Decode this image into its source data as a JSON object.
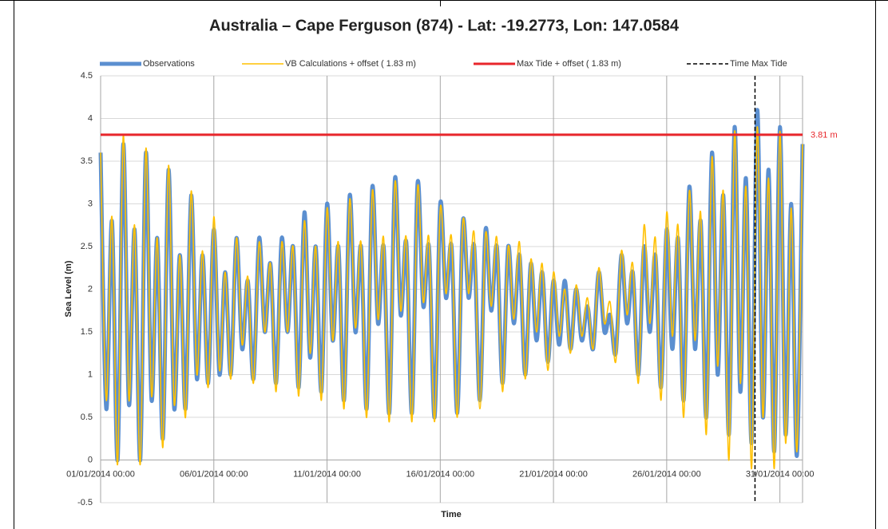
{
  "chart_data": {
    "type": "line",
    "title": "Australia – Cape Ferguson (874) - Lat: -19.2773, Lon: 147.0584",
    "x_label": "Time",
    "y_label": "Sea Level (m)",
    "xlim": [
      0,
      31
    ],
    "ylim": [
      -0.5,
      4.5
    ],
    "xticks": [
      {
        "value": 0,
        "label": "01/01/2014 00:00"
      },
      {
        "value": 5,
        "label": "06/01/2014 00:00"
      },
      {
        "value": 10,
        "label": "11/01/2014 00:00"
      },
      {
        "value": 15,
        "label": "16/01/2014 00:00"
      },
      {
        "value": 20,
        "label": "21/01/2014 00:00"
      },
      {
        "value": 25,
        "label": "26/01/2014 00:00"
      },
      {
        "value": 30,
        "label": "31/01/2014 00:00"
      }
    ],
    "yticks": [
      -0.5,
      0,
      0.5,
      1,
      1.5,
      2,
      2.5,
      3,
      3.5,
      4,
      4.5
    ],
    "grid": true,
    "legend": "top",
    "x": [
      0,
      0.25,
      0.5,
      0.75,
      1,
      1.25,
      1.5,
      1.75,
      2,
      2.25,
      2.5,
      2.75,
      3,
      3.25,
      3.5,
      3.75,
      4,
      4.25,
      4.5,
      4.75,
      5,
      5.25,
      5.5,
      5.75,
      6,
      6.25,
      6.5,
      6.75,
      7,
      7.25,
      7.5,
      7.75,
      8,
      8.25,
      8.5,
      8.75,
      9,
      9.25,
      9.5,
      9.75,
      10,
      10.25,
      10.5,
      10.75,
      11,
      11.25,
      11.5,
      11.75,
      12,
      12.25,
      12.5,
      12.75,
      13,
      13.25,
      13.5,
      13.75,
      14,
      14.25,
      14.5,
      14.75,
      15,
      15.25,
      15.5,
      15.75,
      16,
      16.25,
      16.5,
      16.75,
      17,
      17.25,
      17.5,
      17.75,
      18,
      18.25,
      18.5,
      18.75,
      19,
      19.25,
      19.5,
      19.75,
      20,
      20.25,
      20.5,
      20.75,
      21,
      21.25,
      21.5,
      21.75,
      22,
      22.25,
      22.5,
      22.75,
      23,
      23.25,
      23.5,
      23.75,
      24,
      24.25,
      24.5,
      24.75,
      25,
      25.25,
      25.5,
      25.75,
      26,
      26.25,
      26.5,
      26.75,
      27,
      27.25,
      27.5,
      27.75,
      28,
      28.25,
      28.5,
      28.75,
      29,
      29.25,
      29.5,
      29.75,
      30,
      30.25,
      30.5,
      30.75,
      31
    ],
    "series": [
      {
        "name": "Observations",
        "color": "#5b8fd0",
        "width": 5,
        "values": [
          3.6,
          0.6,
          2.8,
          0.0,
          3.7,
          0.65,
          2.7,
          0.0,
          3.6,
          0.7,
          2.6,
          0.25,
          3.4,
          0.6,
          2.4,
          0.6,
          3.1,
          0.95,
          2.4,
          0.9,
          2.7,
          1.0,
          2.2,
          1.0,
          2.6,
          1.3,
          2.1,
          0.95,
          2.6,
          1.5,
          2.3,
          0.9,
          2.6,
          1.5,
          2.5,
          0.85,
          2.9,
          1.2,
          2.5,
          0.8,
          3.0,
          1.4,
          2.5,
          0.7,
          3.1,
          1.5,
          2.5,
          0.6,
          3.2,
          1.6,
          2.5,
          0.55,
          3.3,
          1.7,
          2.55,
          0.55,
          3.25,
          1.8,
          2.5,
          0.5,
          3.0,
          1.9,
          2.5,
          0.55,
          2.8,
          1.9,
          2.5,
          0.7,
          2.7,
          1.75,
          2.5,
          0.9,
          2.5,
          1.6,
          2.4,
          1.0,
          2.3,
          1.4,
          2.2,
          1.15,
          2.1,
          1.35,
          2.1,
          1.3,
          2.0,
          1.4,
          1.8,
          1.3,
          2.2,
          1.5,
          1.7,
          1.25,
          2.4,
          1.6,
          2.2,
          1.0,
          2.5,
          1.5,
          2.4,
          0.85,
          2.7,
          1.3,
          2.6,
          0.7,
          3.2,
          1.3,
          2.8,
          0.5,
          3.6,
          1.0,
          3.1,
          0.3,
          3.9,
          0.8,
          3.3,
          0.2,
          4.1,
          0.5,
          3.4,
          0.1,
          3.9,
          0.3,
          3.0,
          0.05,
          3.7
        ]
      },
      {
        "name": "VB Calculations + offset ( 1.83 m)",
        "color": "#ffc000",
        "width": 1.6,
        "values": [
          3.6,
          0.7,
          2.85,
          -0.05,
          3.8,
          0.7,
          2.75,
          -0.05,
          3.65,
          0.75,
          2.6,
          0.15,
          3.45,
          0.65,
          2.4,
          0.5,
          3.15,
          1.0,
          2.45,
          0.85,
          2.85,
          1.05,
          2.2,
          0.95,
          2.6,
          1.35,
          2.15,
          0.9,
          2.55,
          1.5,
          2.3,
          0.8,
          2.55,
          1.5,
          2.5,
          0.75,
          2.8,
          1.25,
          2.5,
          0.7,
          2.95,
          1.4,
          2.55,
          0.6,
          3.05,
          1.55,
          2.55,
          0.5,
          3.15,
          1.65,
          2.6,
          0.45,
          3.25,
          1.75,
          2.6,
          0.45,
          3.2,
          1.85,
          2.6,
          0.45,
          2.95,
          1.95,
          2.6,
          0.5,
          2.8,
          1.95,
          2.65,
          0.6,
          2.65,
          1.8,
          2.6,
          0.8,
          2.5,
          1.65,
          2.55,
          0.95,
          2.35,
          1.5,
          2.3,
          1.05,
          2.2,
          1.45,
          2.0,
          1.25,
          2.05,
          1.45,
          1.9,
          1.3,
          2.25,
          1.6,
          1.85,
          1.15,
          2.45,
          1.7,
          2.3,
          0.9,
          2.75,
          1.6,
          2.6,
          0.7,
          2.9,
          1.45,
          2.75,
          0.5,
          3.15,
          1.4,
          2.9,
          0.3,
          3.55,
          1.1,
          3.15,
          0.0,
          3.85,
          0.9,
          3.2,
          -0.1,
          3.9,
          0.5,
          3.3,
          -0.1,
          3.85,
          0.2,
          2.95,
          0.1,
          3.7
        ]
      }
    ],
    "max_tide": {
      "name": "Max Tide + offset ( 1.83 m)",
      "color": "#e8262b",
      "value": 3.81,
      "label": "3.81 m"
    },
    "time_max_tide": {
      "name": "Time Max Tide",
      "color": "#000000",
      "x": 28.9
    }
  }
}
